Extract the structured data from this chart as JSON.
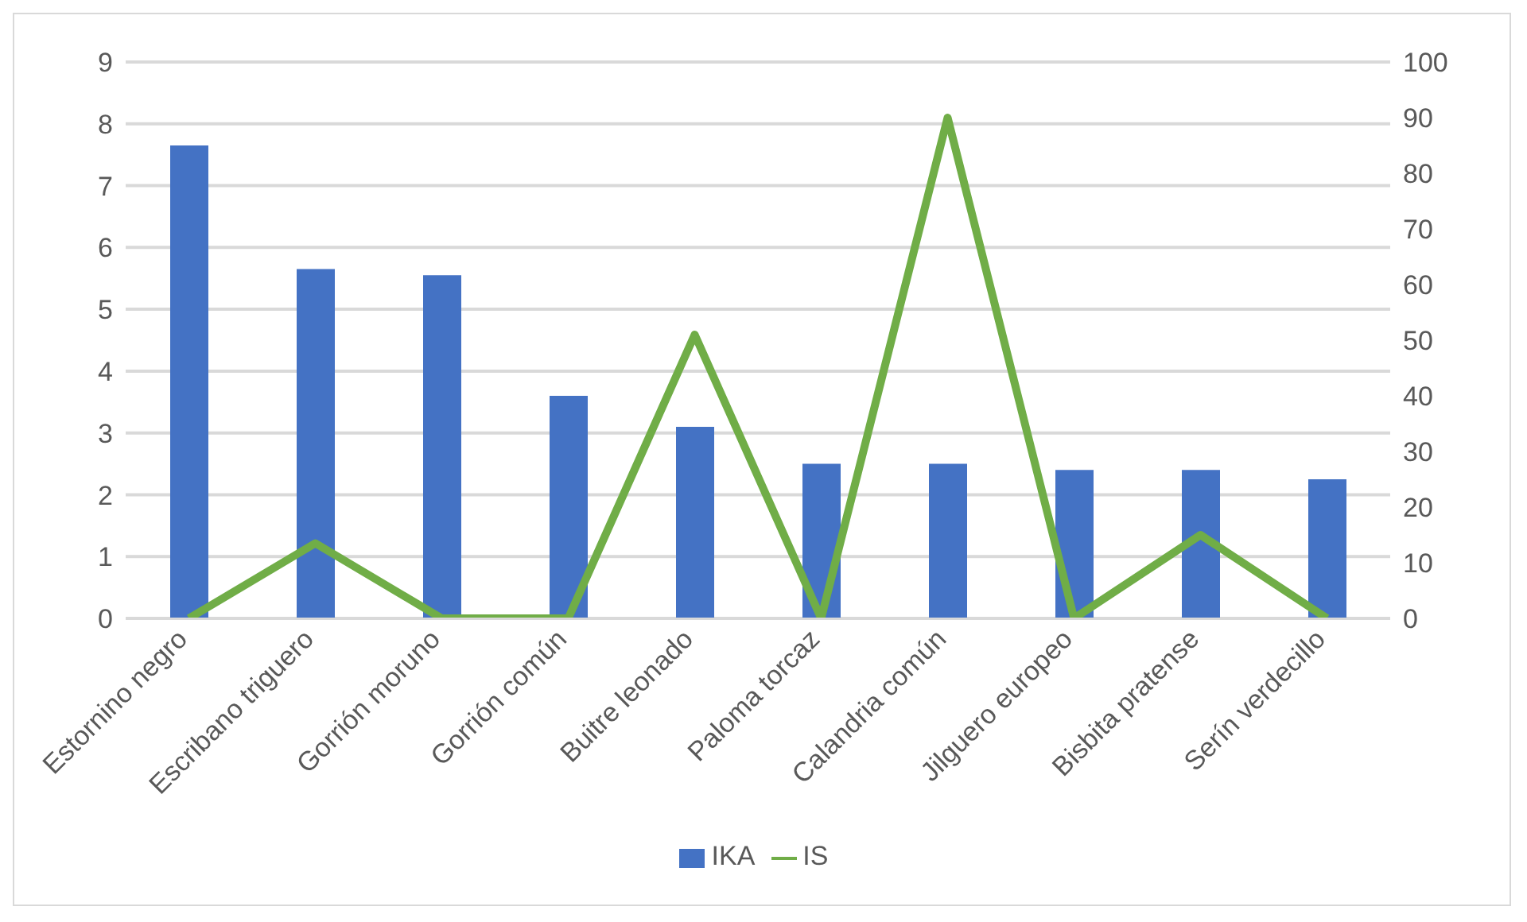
{
  "chart_data": {
    "type": "bar",
    "categories": [
      "Estornino negro",
      "Escribano triguero",
      "Gorrión moruno",
      "Gorrión común",
      "Buitre leonado",
      "Paloma torcaz",
      "Calandria común",
      "Jilguero europeo",
      "Bisbita pratense",
      "Serín verdecillo"
    ],
    "series": [
      {
        "name": "IKA",
        "color": "#4472c4",
        "values": [
          7.65,
          5.65,
          5.55,
          3.6,
          3.1,
          2.5,
          2.5,
          2.4,
          2.4,
          2.25
        ]
      },
      {
        "name": "IS",
        "type": "line",
        "axis": "y2",
        "color": "#70ad47",
        "values": [
          0,
          13.5,
          0,
          0,
          51,
          0,
          90,
          0,
          15,
          0
        ]
      }
    ],
    "ylim": [
      0,
      9
    ],
    "yticks": [
      0,
      1,
      2,
      3,
      4,
      5,
      6,
      7,
      8,
      9
    ],
    "y2lim": [
      0,
      100
    ],
    "y2ticks": [
      0,
      10,
      20,
      30,
      40,
      50,
      60,
      70,
      80,
      90,
      100
    ],
    "grid": "y",
    "legend": "bottom",
    "marker": "none"
  }
}
